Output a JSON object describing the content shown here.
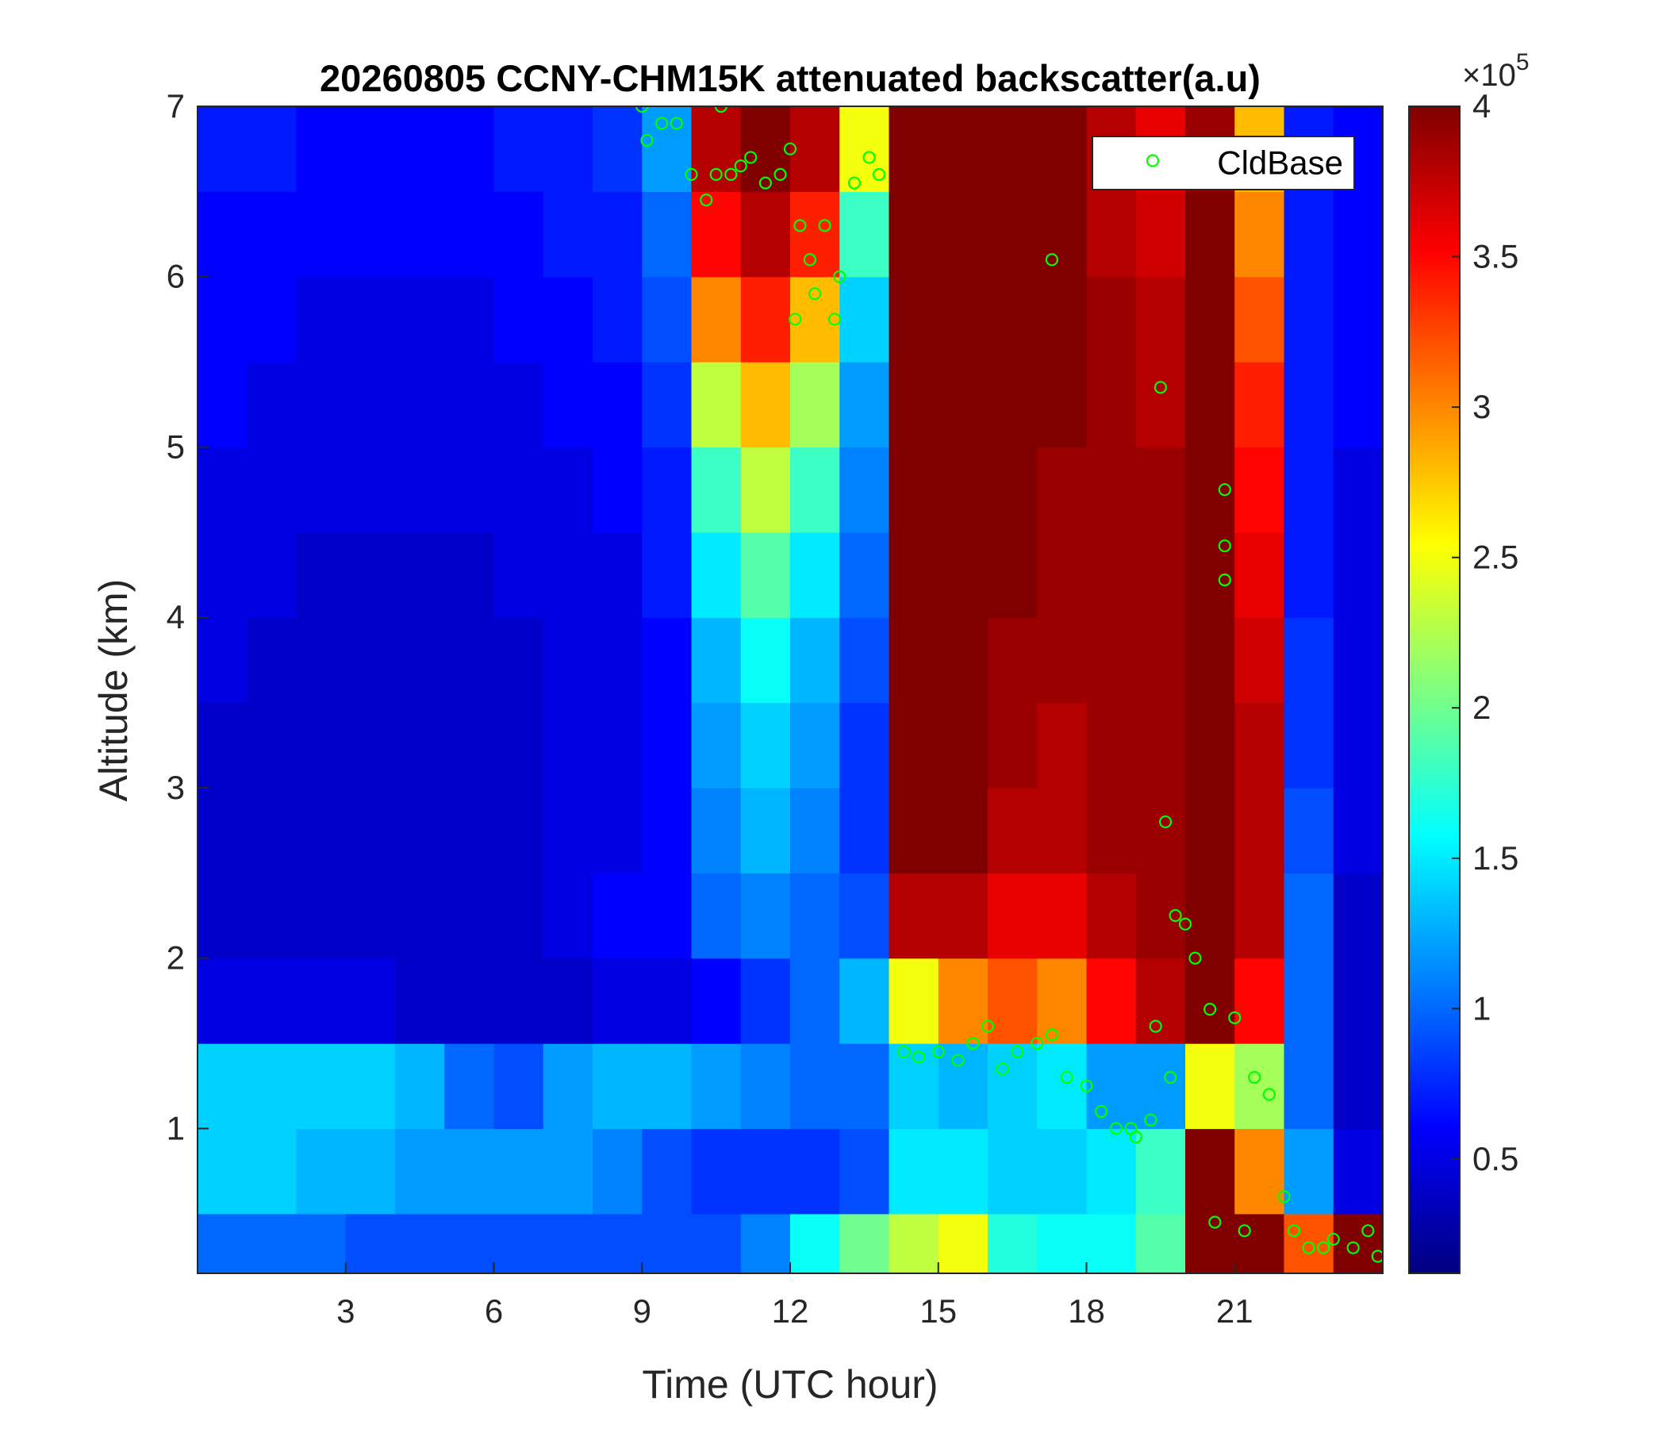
{
  "chart_data": {
    "type": "heatmap",
    "title": "20260805 CCNY-CHM15K attenuated backscatter(a.u)",
    "x_label": "Time (UTC hour)",
    "y_label": "Altitude (km)",
    "xlim": [
      0,
      24
    ],
    "ylim": [
      0.15,
      7
    ],
    "xticks": [
      3,
      6,
      9,
      12,
      15,
      18,
      21
    ],
    "yticks": [
      1,
      2,
      3,
      4,
      5,
      6,
      7
    ],
    "grid": false,
    "colormap": "jet",
    "clim": [
      0.12,
      4
    ],
    "colorbar_ticks": [
      0.5,
      1,
      1.5,
      2,
      2.5,
      3,
      3.5,
      4
    ],
    "colorbar_multiplier": {
      "base": "×10",
      "exponent": "5"
    },
    "x": [
      0.5,
      1.5,
      2.5,
      3.5,
      4.5,
      5.5,
      6.5,
      7.5,
      8.5,
      9.5,
      10.5,
      11.5,
      12.5,
      13.5,
      14.5,
      15.5,
      16.5,
      17.5,
      18.5,
      19.5,
      20.5,
      21.5,
      22.5,
      23.5
    ],
    "y": [
      0.25,
      0.75,
      1.25,
      1.75,
      2.25,
      2.75,
      3.25,
      3.75,
      4.25,
      4.75,
      5.25,
      5.75,
      6.25,
      6.75
    ],
    "z": [
      [
        1.0,
        1.0,
        1.0,
        0.9,
        0.9,
        0.9,
        0.9,
        0.9,
        0.9,
        0.9,
        0.9,
        1.1,
        1.6,
        2.0,
        2.3,
        2.5,
        1.7,
        1.6,
        1.6,
        1.9,
        4.0,
        4.0,
        3.2,
        4.0
      ],
      [
        1.4,
        1.4,
        1.3,
        1.3,
        1.2,
        1.2,
        1.2,
        1.2,
        1.1,
        0.9,
        0.8,
        0.8,
        0.8,
        0.9,
        1.5,
        1.5,
        1.4,
        1.4,
        1.5,
        1.8,
        4.0,
        3.0,
        1.2,
        0.5
      ],
      [
        1.4,
        1.4,
        1.4,
        1.4,
        1.3,
        1.0,
        0.9,
        1.2,
        1.3,
        1.3,
        1.2,
        1.1,
        1.0,
        1.0,
        1.4,
        1.3,
        1.4,
        1.5,
        1.2,
        1.2,
        2.5,
        2.2,
        1.0,
        0.4
      ],
      [
        0.5,
        0.5,
        0.5,
        0.5,
        0.4,
        0.4,
        0.4,
        0.4,
        0.5,
        0.5,
        0.6,
        0.8,
        1.0,
        1.3,
        2.5,
        3.0,
        3.2,
        3.0,
        3.5,
        3.8,
        4.0,
        3.5,
        1.0,
        0.4
      ],
      [
        0.4,
        0.4,
        0.4,
        0.4,
        0.4,
        0.4,
        0.4,
        0.5,
        0.6,
        0.6,
        1.0,
        1.1,
        1.0,
        0.9,
        3.8,
        3.8,
        3.6,
        3.6,
        3.8,
        3.9,
        4.0,
        3.8,
        1.0,
        0.4
      ],
      [
        0.4,
        0.4,
        0.4,
        0.4,
        0.4,
        0.4,
        0.4,
        0.5,
        0.5,
        0.6,
        1.1,
        1.3,
        1.1,
        0.8,
        4.0,
        4.0,
        3.8,
        3.8,
        3.9,
        3.9,
        4.0,
        3.8,
        0.9,
        0.5
      ],
      [
        0.4,
        0.4,
        0.4,
        0.4,
        0.4,
        0.4,
        0.4,
        0.5,
        0.5,
        0.6,
        1.2,
        1.4,
        1.2,
        0.8,
        4.0,
        4.0,
        3.9,
        3.8,
        3.9,
        3.9,
        4.0,
        3.8,
        0.8,
        0.5
      ],
      [
        0.5,
        0.4,
        0.4,
        0.4,
        0.4,
        0.4,
        0.4,
        0.5,
        0.5,
        0.6,
        1.3,
        1.6,
        1.3,
        0.9,
        4.0,
        4.0,
        3.9,
        3.9,
        3.9,
        3.9,
        4.0,
        3.7,
        0.8,
        0.5
      ],
      [
        0.5,
        0.5,
        0.4,
        0.4,
        0.4,
        0.4,
        0.5,
        0.5,
        0.5,
        0.7,
        1.5,
        1.9,
        1.5,
        1.0,
        4.0,
        4.0,
        4.0,
        3.9,
        3.9,
        3.9,
        4.0,
        3.6,
        0.7,
        0.5
      ],
      [
        0.5,
        0.5,
        0.5,
        0.5,
        0.5,
        0.5,
        0.5,
        0.5,
        0.6,
        0.7,
        1.8,
        2.3,
        1.8,
        1.1,
        4.0,
        4.0,
        4.0,
        3.9,
        3.9,
        3.9,
        4.0,
        3.5,
        0.7,
        0.5
      ],
      [
        0.6,
        0.5,
        0.5,
        0.5,
        0.5,
        0.5,
        0.5,
        0.6,
        0.6,
        0.8,
        2.3,
        2.8,
        2.2,
        1.2,
        4.0,
        4.0,
        4.0,
        4.0,
        3.9,
        3.8,
        4.0,
        3.4,
        0.7,
        0.6
      ],
      [
        0.6,
        0.6,
        0.5,
        0.5,
        0.5,
        0.5,
        0.6,
        0.6,
        0.7,
        0.9,
        3.0,
        3.4,
        2.8,
        1.4,
        4.0,
        4.0,
        4.0,
        4.0,
        3.9,
        3.8,
        4.0,
        3.2,
        0.7,
        0.6
      ],
      [
        0.6,
        0.6,
        0.6,
        0.6,
        0.6,
        0.6,
        0.6,
        0.7,
        0.7,
        1.0,
        3.5,
        3.8,
        3.4,
        1.8,
        4.0,
        4.0,
        4.0,
        4.0,
        3.8,
        3.7,
        4.0,
        3.0,
        0.7,
        0.6
      ],
      [
        0.7,
        0.7,
        0.6,
        0.6,
        0.6,
        0.6,
        0.7,
        0.7,
        0.8,
        1.2,
        3.8,
        4.0,
        3.8,
        2.5,
        4.0,
        4.0,
        4.0,
        4.0,
        3.8,
        3.6,
        3.9,
        2.8,
        0.7,
        0.6
      ]
    ],
    "scatter": {
      "name": "CldBase",
      "color": "#00ff00",
      "x": [
        9.0,
        9.1,
        9.4,
        9.7,
        10.0,
        10.3,
        10.5,
        10.6,
        10.8,
        11.0,
        11.2,
        11.5,
        11.8,
        12.0,
        12.2,
        12.4,
        12.5,
        12.7,
        12.9,
        13.0,
        13.3,
        13.6,
        13.8,
        12.1,
        14.3,
        14.6,
        15.0,
        15.4,
        15.7,
        16.0,
        16.3,
        16.6,
        17.0,
        17.3,
        17.3,
        17.6,
        18.0,
        18.3,
        18.6,
        19.0,
        19.3,
        19.5,
        19.6,
        19.7,
        19.8,
        20.0,
        20.2,
        20.5,
        20.6,
        20.8,
        20.8,
        20.8,
        21.0,
        21.2,
        21.4,
        21.7,
        22.0,
        22.2,
        22.5,
        22.8,
        23.0,
        23.4,
        23.7,
        23.9,
        19.4,
        18.9
      ],
      "y": [
        7.0,
        6.8,
        6.9,
        6.9,
        6.6,
        6.45,
        6.6,
        7.0,
        6.6,
        6.65,
        6.7,
        6.55,
        6.6,
        6.75,
        6.3,
        6.1,
        5.9,
        6.3,
        5.75,
        6.0,
        6.55,
        6.7,
        6.6,
        5.75,
        1.45,
        1.42,
        1.45,
        1.4,
        1.5,
        1.6,
        1.35,
        1.45,
        1.5,
        1.55,
        6.1,
        1.3,
        1.25,
        1.1,
        1.0,
        0.95,
        1.05,
        5.35,
        2.8,
        1.3,
        2.25,
        2.2,
        2.0,
        1.7,
        0.45,
        4.75,
        4.42,
        4.22,
        1.65,
        0.4,
        1.3,
        1.2,
        0.6,
        0.4,
        0.3,
        0.3,
        0.35,
        0.3,
        0.4,
        0.25,
        1.6,
        1.0
      ]
    },
    "legend_position": "northeast"
  }
}
